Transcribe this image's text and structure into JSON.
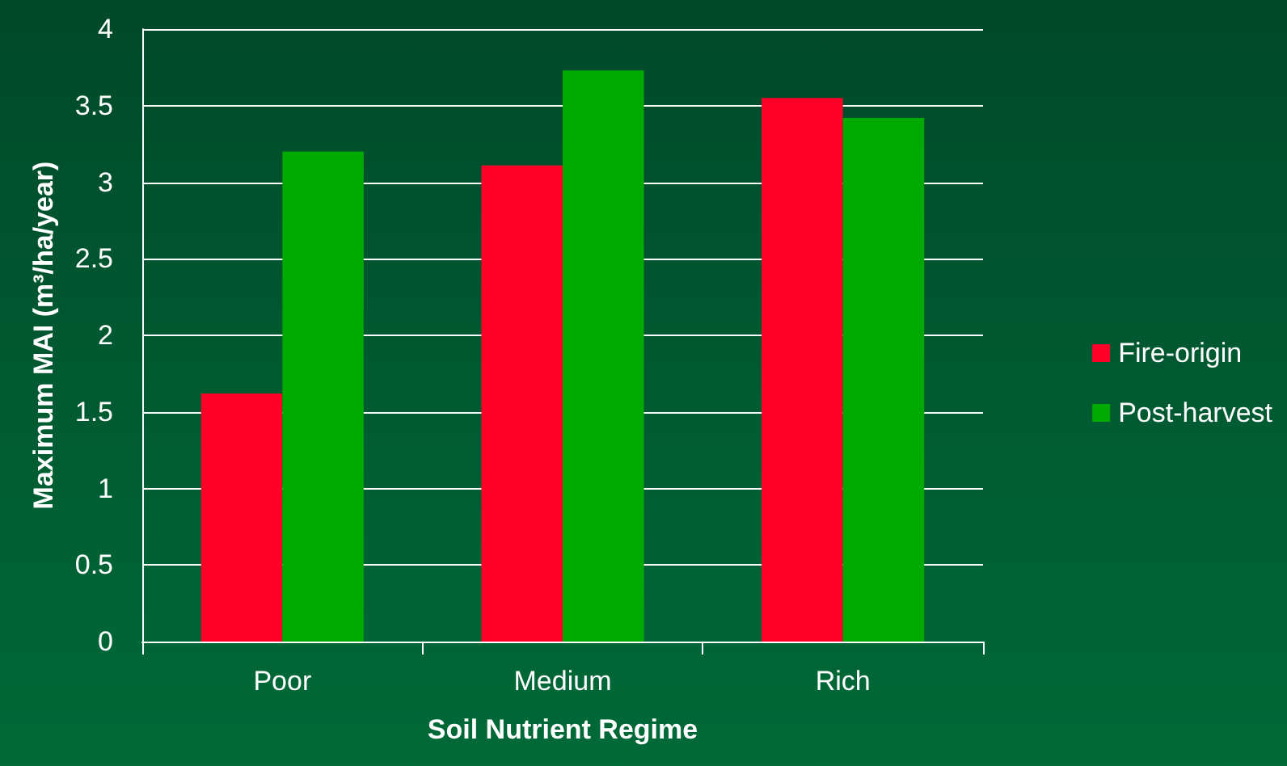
{
  "chart_data": {
    "type": "bar",
    "xlabel": "Soil Nutrient Regime",
    "ylabel": "Maximum MAI (m³/ha/year)",
    "categories": [
      "Poor",
      "Medium",
      "Rich"
    ],
    "series": [
      {
        "name": "Fire-origin",
        "color": "#ff0029",
        "values": [
          1.62,
          3.11,
          3.55
        ]
      },
      {
        "name": "Post-harvest",
        "color": "#00aa00",
        "values": [
          3.2,
          3.73,
          3.42
        ]
      }
    ],
    "ylim": [
      0,
      4
    ],
    "yticks": [
      0,
      0.5,
      1,
      1.5,
      2,
      2.5,
      3,
      3.5,
      4
    ],
    "grid": "y",
    "legend": "right"
  }
}
